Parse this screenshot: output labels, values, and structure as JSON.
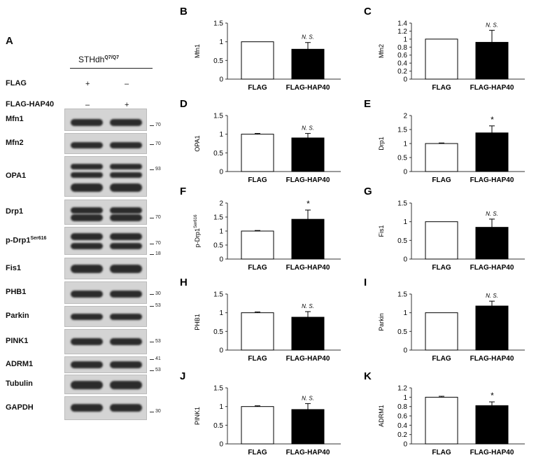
{
  "figure": {
    "panelA": {
      "letter": "A",
      "cell_line": "STHdh",
      "cell_line_sup": "Q7/Q7",
      "rows": [
        {
          "label": "FLAG",
          "lane1": "+",
          "lane2": "–"
        },
        {
          "label": "FLAG-HAP40",
          "lane1": "–",
          "lane2": "+"
        }
      ],
      "blots": [
        {
          "label": "Mfn1",
          "mw": "70"
        },
        {
          "label": "Mfn2",
          "mw": "70"
        },
        {
          "label": "OPA1",
          "mw": "93"
        },
        {
          "label": "Drp1",
          "mw": "70"
        },
        {
          "label": "p-Drp1",
          "label_sup": "Ser616",
          "mw": "70"
        },
        {
          "label": "Fis1",
          "mw": "18"
        },
        {
          "label": "PHB1",
          "mw": "30"
        },
        {
          "label": "Parkin",
          "mw": "53"
        },
        {
          "label": "PINK1",
          "mw": "53"
        },
        {
          "label": "ADRM1",
          "mw": "41"
        },
        {
          "label": "Tubulin",
          "mw": "53"
        },
        {
          "label": "GAPDH",
          "mw": "30"
        }
      ]
    }
  },
  "chart_data": [
    {
      "panel": "B",
      "type": "bar",
      "ylabel": "Mfn1",
      "categories": [
        "FLAG",
        "FLAG-HAP40"
      ],
      "values": [
        1.0,
        0.8
      ],
      "errors": [
        0,
        0.18
      ],
      "ylim": [
        0,
        1.5
      ],
      "yticks": [
        "0",
        "0.5",
        "1",
        "1.5"
      ],
      "significance": [
        "",
        "N. S."
      ]
    },
    {
      "panel": "C",
      "type": "bar",
      "ylabel": "Mfn2",
      "categories": [
        "FLAG",
        "FLAG-HAP40"
      ],
      "values": [
        1.0,
        0.92
      ],
      "errors": [
        0,
        0.3
      ],
      "ylim": [
        0,
        1.4
      ],
      "yticks": [
        "0",
        "0.2",
        "0.4",
        "0.6",
        "0.8",
        "1",
        "1.2",
        "1.4"
      ],
      "significance": [
        "",
        "N. S."
      ]
    },
    {
      "panel": "D",
      "type": "bar",
      "ylabel": "OPA1",
      "categories": [
        "FLAG",
        "FLAG-HAP40"
      ],
      "values": [
        1.0,
        0.9
      ],
      "errors": [
        0.02,
        0.12
      ],
      "ylim": [
        0,
        1.5
      ],
      "yticks": [
        "0",
        "0.5",
        "1",
        "1.5"
      ],
      "significance": [
        "",
        "N. S."
      ]
    },
    {
      "panel": "E",
      "type": "bar",
      "ylabel": "Drp1",
      "categories": [
        "FLAG",
        "FLAG-HAP40"
      ],
      "values": [
        1.0,
        1.38
      ],
      "errors": [
        0.02,
        0.25
      ],
      "ylim": [
        0,
        2
      ],
      "yticks": [
        "0",
        "0.5",
        "1",
        "1.5",
        "2"
      ],
      "significance": [
        "",
        "*"
      ]
    },
    {
      "panel": "F",
      "type": "bar",
      "ylabel": "p-Drp1",
      "ylabel_sup": "Ser616",
      "categories": [
        "FLAG",
        "FLAG-HAP40"
      ],
      "values": [
        1.0,
        1.42
      ],
      "errors": [
        0.02,
        0.33
      ],
      "ylim": [
        0,
        2
      ],
      "yticks": [
        "0",
        "0.5",
        "1",
        "1.5",
        "2"
      ],
      "significance": [
        "",
        "*"
      ]
    },
    {
      "panel": "G",
      "type": "bar",
      "ylabel": "Fis1",
      "categories": [
        "FLAG",
        "FLAG-HAP40"
      ],
      "values": [
        1.0,
        0.85
      ],
      "errors": [
        0,
        0.22
      ],
      "ylim": [
        0,
        1.5
      ],
      "yticks": [
        "0",
        "0.5",
        "1",
        "1.5"
      ],
      "significance": [
        "",
        "N. S."
      ]
    },
    {
      "panel": "H",
      "type": "bar",
      "ylabel": "PHB1",
      "categories": [
        "FLAG",
        "FLAG-HAP40"
      ],
      "values": [
        1.0,
        0.88
      ],
      "errors": [
        0.02,
        0.15
      ],
      "ylim": [
        0,
        1.5
      ],
      "yticks": [
        "0",
        "0.5",
        "1",
        "1.5"
      ],
      "significance": [
        "",
        "N. S."
      ]
    },
    {
      "panel": "I",
      "type": "bar",
      "ylabel": "Parkin",
      "categories": [
        "FLAG",
        "FLAG-HAP40"
      ],
      "values": [
        1.0,
        1.18
      ],
      "errors": [
        0,
        0.13
      ],
      "ylim": [
        0,
        1.5
      ],
      "yticks": [
        "0",
        "0.5",
        "1",
        "1.5"
      ],
      "significance": [
        "",
        "N. S."
      ]
    },
    {
      "panel": "J",
      "type": "bar",
      "ylabel": "PINK1",
      "categories": [
        "FLAG",
        "FLAG-HAP40"
      ],
      "values": [
        1.0,
        0.92
      ],
      "errors": [
        0.02,
        0.16
      ],
      "ylim": [
        0,
        1.5
      ],
      "yticks": [
        "0",
        "0.5",
        "1",
        "1.5"
      ],
      "significance": [
        "",
        "N. S."
      ]
    },
    {
      "panel": "K",
      "type": "bar",
      "ylabel": "ADRM1",
      "categories": [
        "FLAG",
        "FLAG-HAP40"
      ],
      "values": [
        1.0,
        0.82
      ],
      "errors": [
        0.02,
        0.08
      ],
      "ylim": [
        0,
        1.2
      ],
      "yticks": [
        "0",
        "0.2",
        "0.4",
        "0.6",
        "0.8",
        "1",
        "1.2"
      ],
      "significance": [
        "",
        "*"
      ]
    }
  ]
}
